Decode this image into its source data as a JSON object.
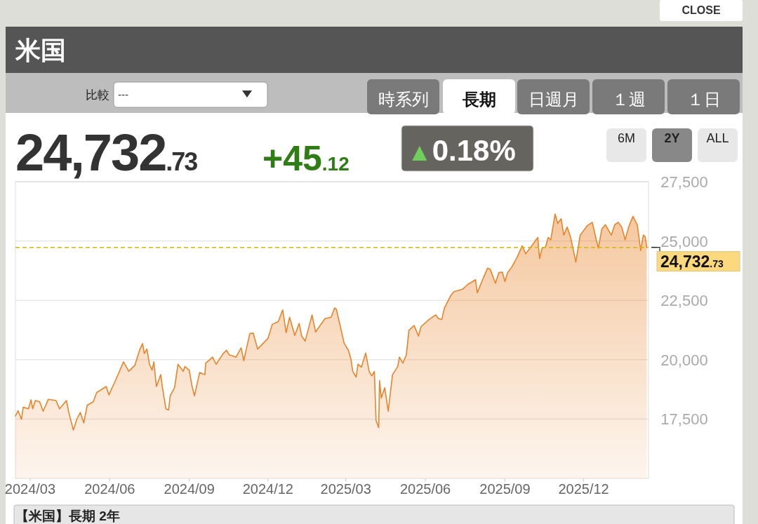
{
  "chart_data": {
    "type": "area",
    "title": "米国",
    "annotations": [
      "CLOSE",
      "比較",
      "---",
      "時系列",
      "長期",
      "日週月",
      "１週",
      "１日",
      "6M",
      "2Y",
      "ALL",
      "24,732.73",
      "+45.12",
      "▲0.18%",
      "【米国】長期 2年"
    ],
    "x": [
      "2024-02-13",
      "2024-02-16",
      "2024-02-20",
      "2024-02-22",
      "2024-02-28",
      "2024-03-02",
      "2024-03-04",
      "2024-03-07",
      "2024-03-12",
      "2024-03-16",
      "2024-03-22",
      "2024-03-31",
      "2024-04-04",
      "2024-04-12",
      "2024-04-15",
      "2024-04-20",
      "2024-04-24",
      "2024-04-28",
      "2024-05-02",
      "2024-05-06",
      "2024-05-13",
      "2024-05-17",
      "2024-05-28",
      "2024-05-31",
      "2024-06-07",
      "2024-06-17",
      "2024-06-23",
      "2024-06-30",
      "2024-07-06",
      "2024-07-09",
      "2024-07-11",
      "2024-07-14",
      "2024-07-17",
      "2024-07-20",
      "2024-07-22",
      "2024-07-25",
      "2024-07-30",
      "2024-08-01",
      "2024-08-05",
      "2024-08-08",
      "2024-08-10",
      "2024-08-15",
      "2024-08-19",
      "2024-08-25",
      "2024-08-27",
      "2024-09-01",
      "2024-09-04",
      "2024-09-07",
      "2024-09-13",
      "2024-09-19",
      "2024-09-20",
      "2024-09-28",
      "2024-10-02",
      "2024-10-10",
      "2024-10-14",
      "2024-10-17",
      "2024-10-25",
      "2024-10-31",
      "2024-11-03",
      "2024-11-10",
      "2024-11-14",
      "2024-11-19",
      "2024-12-01",
      "2024-12-06",
      "2024-12-13",
      "2024-12-18",
      "2024-12-22",
      "2024-12-26",
      "2025-01-01",
      "2025-01-06",
      "2025-01-09",
      "2025-01-13",
      "2025-01-21",
      "2025-01-25",
      "2025-02-05",
      "2025-02-12",
      "2025-02-16",
      "2025-02-18",
      "2025-02-24",
      "2025-02-27",
      "2025-03-04",
      "2025-03-07",
      "2025-03-09",
      "2025-03-13",
      "2025-03-15",
      "2025-03-19",
      "2025-03-24",
      "2025-03-28",
      "2025-03-31",
      "2025-04-03",
      "2025-04-05",
      "2025-04-08",
      "2025-04-09",
      "2025-04-11",
      "2025-04-15",
      "2025-04-19",
      "2025-04-24",
      "2025-04-30",
      "2025-05-02",
      "2025-05-06",
      "2025-05-10",
      "2025-05-13",
      "2025-05-19",
      "2025-05-24",
      "2025-05-27",
      "2025-06-05",
      "2025-06-13",
      "2025-06-16",
      "2025-06-20",
      "2025-06-23",
      "2025-06-30",
      "2025-07-04",
      "2025-07-14",
      "2025-07-20",
      "2025-07-29",
      "2025-07-31",
      "2025-08-05",
      "2025-08-12",
      "2025-08-15",
      "2025-08-21",
      "2025-08-25",
      "2025-08-29",
      "2025-09-01",
      "2025-09-04",
      "2025-09-09",
      "2025-09-15",
      "2025-09-21",
      "2025-09-25",
      "2025-10-05",
      "2025-10-09",
      "2025-10-11",
      "2025-10-14",
      "2025-10-18",
      "2025-10-21",
      "2025-10-24",
      "2025-10-29",
      "2025-11-01",
      "2025-11-05",
      "2025-11-08",
      "2025-11-12",
      "2025-11-16",
      "2025-11-22",
      "2025-11-27",
      "2025-12-05",
      "2025-12-11",
      "2025-12-15",
      "2025-12-18",
      "2025-12-22",
      "2025-12-26",
      "2026-01-02",
      "2026-01-06",
      "2026-01-10",
      "2026-01-14",
      "2026-01-18",
      "2026-01-22",
      "2026-01-27",
      "2026-02-01",
      "2026-02-05",
      "2026-02-08",
      "2026-02-10",
      "2026-02-12"
    ],
    "values": [
      17630,
      17850,
      17490,
      18000,
      17930,
      18310,
      17930,
      18280,
      18230,
      17830,
      18330,
      18280,
      17930,
      18280,
      17730,
      17040,
      17490,
      17780,
      17340,
      18080,
      18230,
      18620,
      18870,
      18520,
      19070,
      19910,
      19510,
      19760,
      20450,
      20680,
      20260,
      20450,
      19810,
      19560,
      19910,
      18870,
      19370,
      18820,
      17930,
      17880,
      18480,
      18820,
      19810,
      19510,
      19710,
      19560,
      18920,
      18480,
      19460,
      19370,
      19860,
      20110,
      19810,
      20250,
      20400,
      20210,
      20110,
      20500,
      19960,
      21100,
      21120,
      20450,
      20900,
      21490,
      21610,
      22100,
      21140,
      21790,
      21020,
      21530,
      21000,
      20780,
      21890,
      21170,
      21740,
      21790,
      22180,
      22130,
      21190,
      20700,
      20400,
      20010,
      19510,
      19270,
      19810,
      19690,
      20280,
      19510,
      19320,
      19510,
      17440,
      17140,
      19120,
      18380,
      18820,
      17830,
      19370,
      19710,
      20110,
      19860,
      20210,
      21240,
      21440,
      21000,
      21390,
      21690,
      21890,
      21740,
      21690,
      22180,
      22680,
      22870,
      22970,
      23170,
      23370,
      22820,
      23270,
      23860,
      23810,
      23220,
      23670,
      23690,
      23290,
      23670,
      23910,
      24310,
      24800,
      24460,
      24950,
      25150,
      24260,
      24700,
      24750,
      25150,
      25050,
      26140,
      25740,
      25940,
      25250,
      25590,
      25150,
      24110,
      25250,
      25640,
      25790,
      25150,
      24700,
      25500,
      25690,
      25250,
      25690,
      25790,
      25590,
      25050,
      25590,
      26040,
      25690,
      24600,
      25250,
      25200,
      24730
    ],
    "color": "#e8842a",
    "xlim": [
      "2024-02-13",
      "2026-02-14"
    ],
    "xticks": [
      {
        "value": "2024-03-01",
        "label": "2024/03"
      },
      {
        "value": "2024-06-01",
        "label": "2024/06"
      },
      {
        "value": "2024-09-01",
        "label": "2024/09"
      },
      {
        "value": "2024-12-01",
        "label": "2024/12"
      },
      {
        "value": "2025-03-01",
        "label": "2025/03"
      },
      {
        "value": "2025-06-01",
        "label": "2025/06"
      },
      {
        "value": "2025-09-01",
        "label": "2025/09"
      },
      {
        "value": "2025-12-01",
        "label": "2025/12"
      }
    ],
    "ylim": [
      15000,
      27500
    ],
    "yticks": [
      {
        "value": 17500,
        "label": "17,500"
      },
      {
        "value": 20000,
        "label": "20,000"
      },
      {
        "value": 22500,
        "label": "22,500"
      },
      {
        "value": 25000,
        "label": "25,000"
      },
      {
        "value": 27500,
        "label": "27,500"
      }
    ],
    "grid": "y",
    "ref_lines": [
      {
        "axis": "y",
        "value": 24732.73,
        "label": "24,732.73",
        "color": "#d4b800",
        "line_style": "dashed"
      }
    ]
  }
}
